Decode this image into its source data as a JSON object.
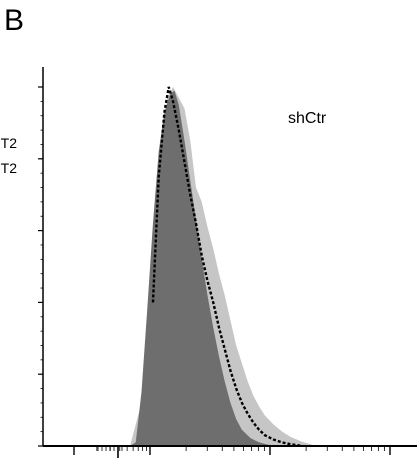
{
  "panel_label": "B",
  "legend_fragments": [
    "T2",
    "T2"
  ],
  "chart_data": {
    "type": "area",
    "annotation": "shCtr",
    "x_scale": "log",
    "colors": {
      "inner_fill": "#6e6e6e",
      "outer_fill": "#c6c6c6",
      "dashed_line": "#000000"
    },
    "series": [
      {
        "style": "filled-dark",
        "color": "#6e6e6e",
        "points": [
          [
            0.0,
            0
          ],
          [
            0.02,
            0.01
          ],
          [
            0.04,
            0.15
          ],
          [
            0.06,
            0.38
          ],
          [
            0.08,
            0.62
          ],
          [
            0.1,
            0.82
          ],
          [
            0.12,
            0.93
          ],
          [
            0.14,
            0.98
          ],
          [
            0.155,
            0.99
          ],
          [
            0.17,
            0.95
          ],
          [
            0.19,
            0.85
          ],
          [
            0.21,
            0.74
          ],
          [
            0.23,
            0.63
          ],
          [
            0.25,
            0.52
          ],
          [
            0.27,
            0.42
          ],
          [
            0.29,
            0.33
          ],
          [
            0.31,
            0.25
          ],
          [
            0.33,
            0.18
          ],
          [
            0.35,
            0.12
          ],
          [
            0.37,
            0.075
          ],
          [
            0.39,
            0.045
          ],
          [
            0.42,
            0.022
          ],
          [
            0.45,
            0.01
          ],
          [
            0.48,
            0.004
          ],
          [
            0.52,
            0.0
          ]
        ]
      },
      {
        "style": "filled-light",
        "color": "#c6c6c6",
        "points": [
          [
            0.0,
            0
          ],
          [
            0.04,
            0.12
          ],
          [
            0.08,
            0.55
          ],
          [
            0.11,
            0.85
          ],
          [
            0.13,
            0.97
          ],
          [
            0.15,
            1.0
          ],
          [
            0.17,
            0.97
          ],
          [
            0.19,
            0.94
          ],
          [
            0.21,
            0.85
          ],
          [
            0.23,
            0.72
          ],
          [
            0.25,
            0.68
          ],
          [
            0.27,
            0.61
          ],
          [
            0.29,
            0.55
          ],
          [
            0.31,
            0.48
          ],
          [
            0.33,
            0.42
          ],
          [
            0.35,
            0.35
          ],
          [
            0.37,
            0.28
          ],
          [
            0.39,
            0.23
          ],
          [
            0.41,
            0.18
          ],
          [
            0.43,
            0.14
          ],
          [
            0.45,
            0.11
          ],
          [
            0.47,
            0.085
          ],
          [
            0.5,
            0.06
          ],
          [
            0.53,
            0.04
          ],
          [
            0.56,
            0.025
          ],
          [
            0.6,
            0.012
          ],
          [
            0.65,
            0.0
          ]
        ]
      },
      {
        "style": "dashed",
        "color": "#000000",
        "points": [
          [
            0.08,
            0.4
          ],
          [
            0.1,
            0.75
          ],
          [
            0.12,
            0.93
          ],
          [
            0.135,
            1.0
          ],
          [
            0.15,
            0.96
          ],
          [
            0.17,
            0.88
          ],
          [
            0.19,
            0.79
          ],
          [
            0.21,
            0.7
          ],
          [
            0.23,
            0.62
          ],
          [
            0.25,
            0.53
          ],
          [
            0.27,
            0.46
          ],
          [
            0.29,
            0.4
          ],
          [
            0.31,
            0.33
          ],
          [
            0.33,
            0.27
          ],
          [
            0.35,
            0.21
          ],
          [
            0.37,
            0.16
          ],
          [
            0.39,
            0.12
          ],
          [
            0.41,
            0.09
          ],
          [
            0.43,
            0.065
          ],
          [
            0.45,
            0.045
          ],
          [
            0.47,
            0.03
          ],
          [
            0.5,
            0.018
          ],
          [
            0.53,
            0.01
          ],
          [
            0.56,
            0.005
          ],
          [
            0.6,
            0.0
          ]
        ]
      }
    ]
  }
}
